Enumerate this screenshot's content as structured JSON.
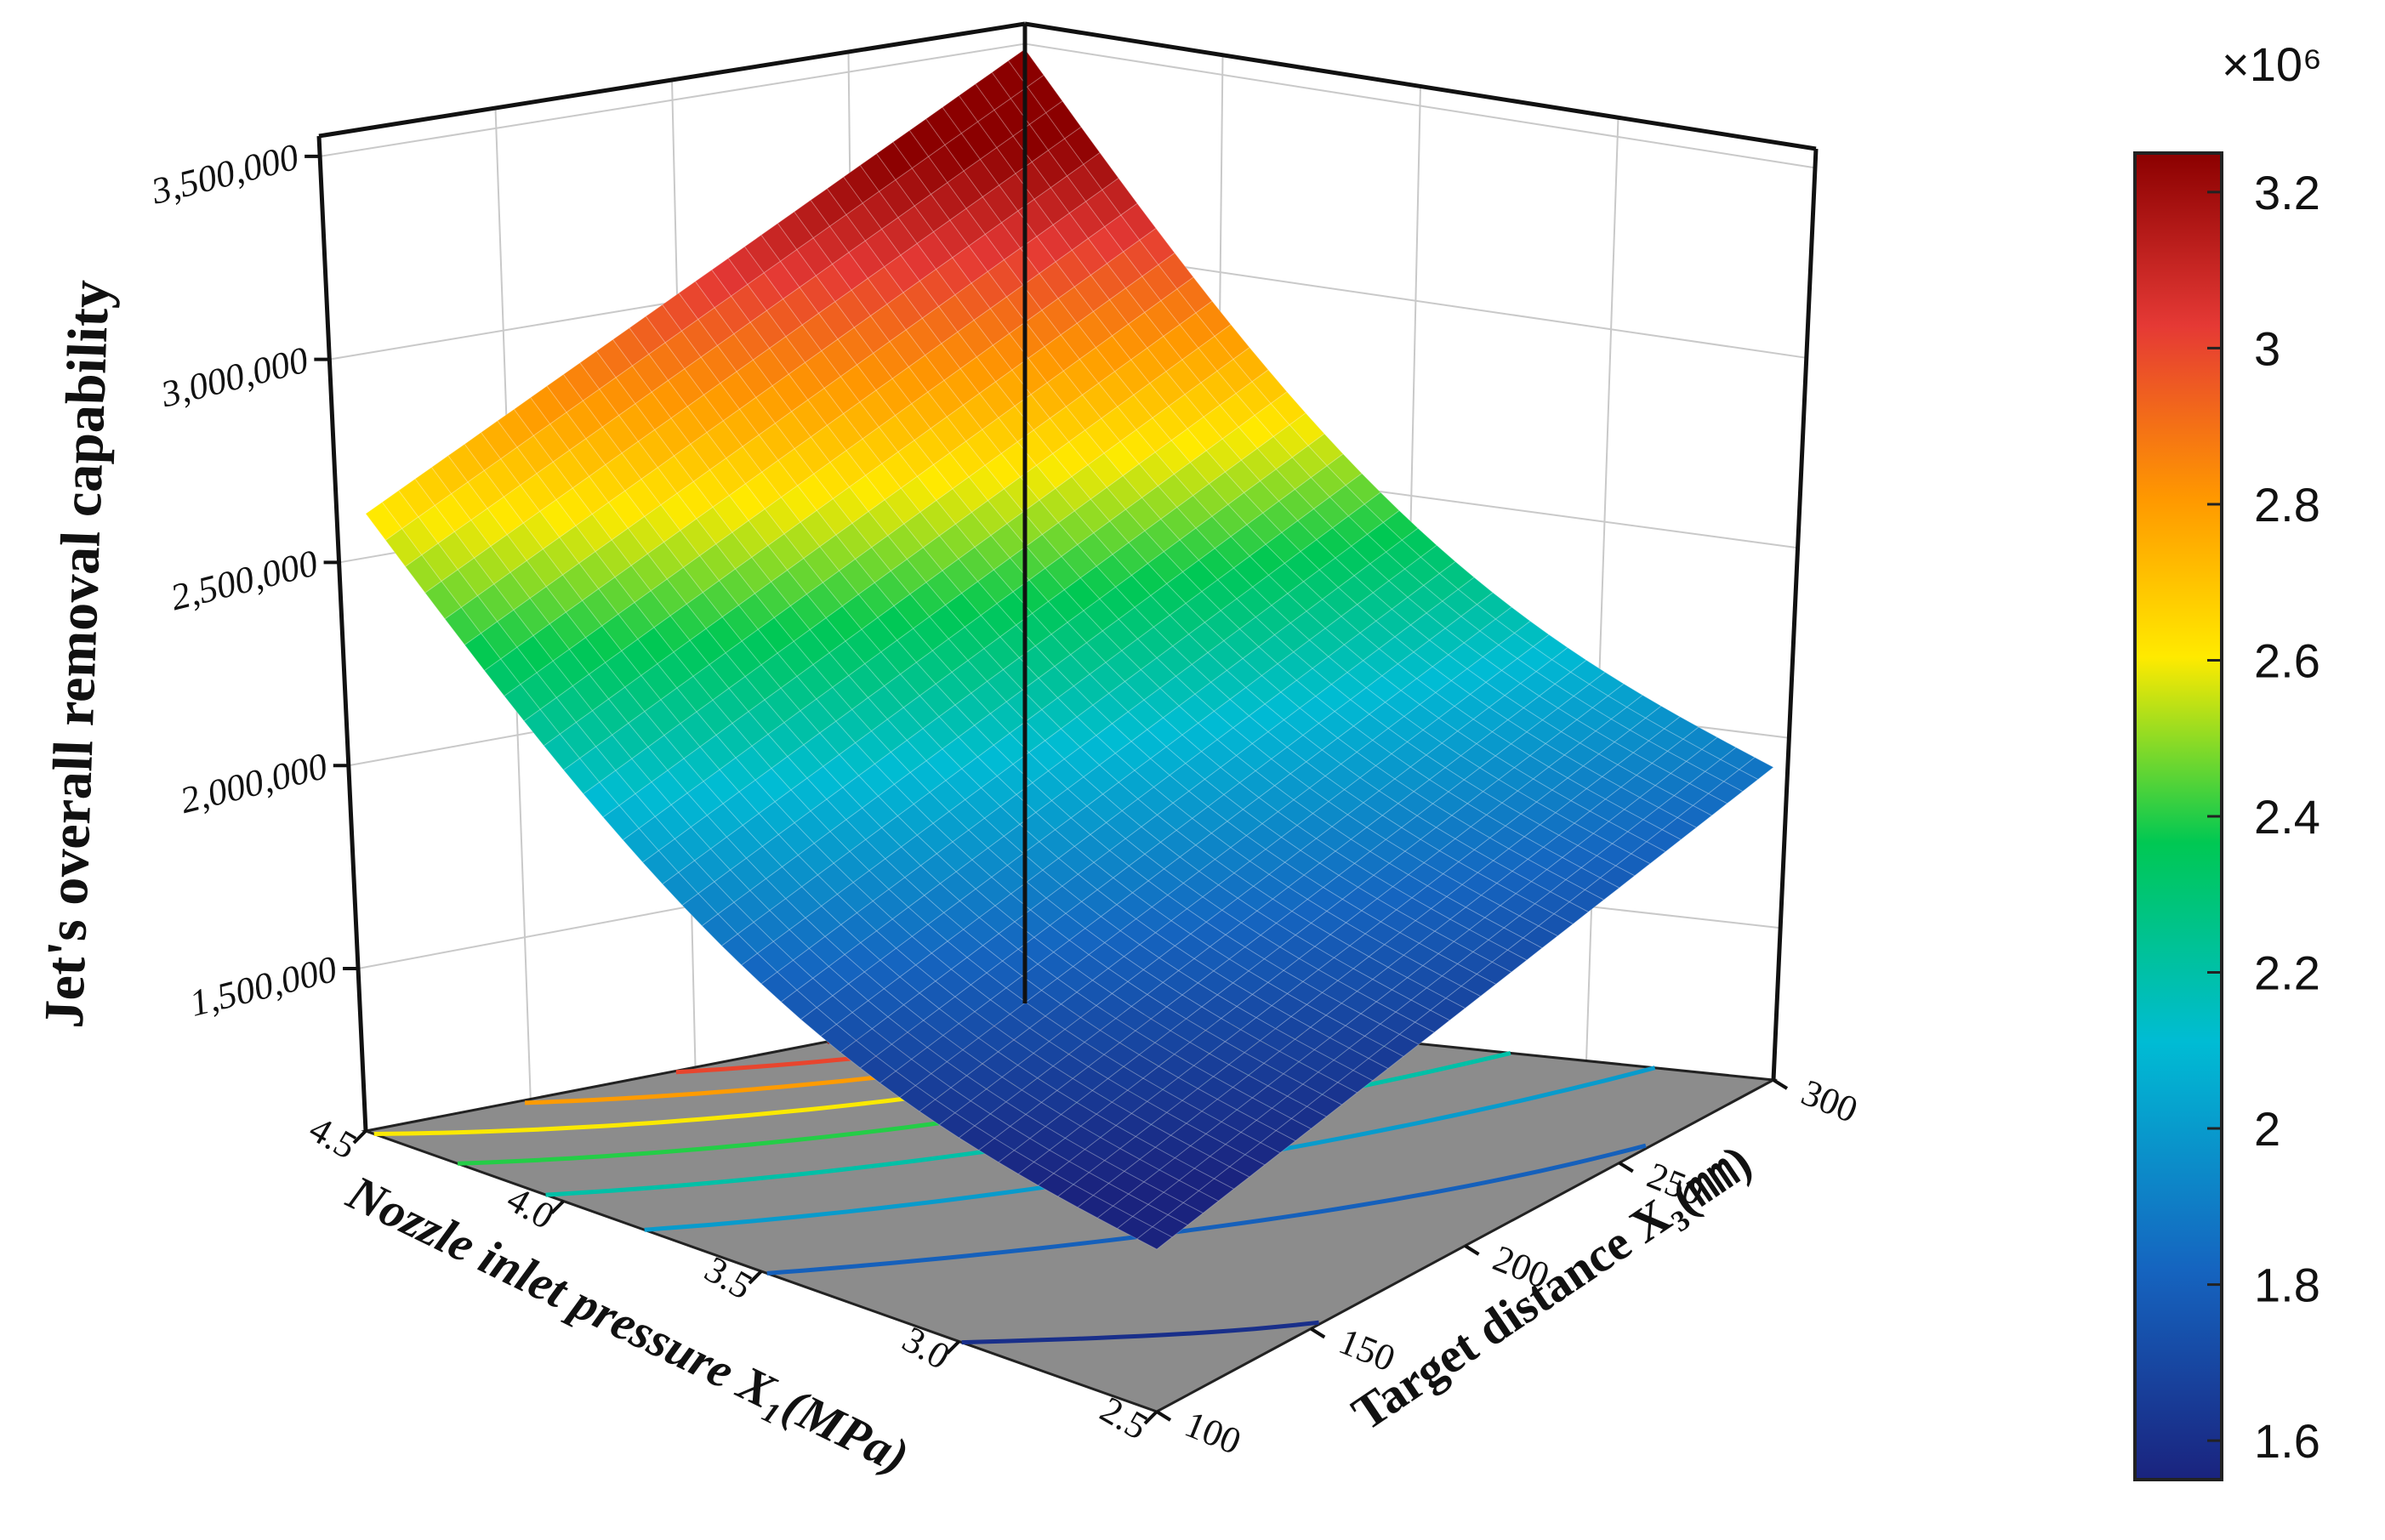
{
  "chart_data": {
    "type": "surface3d",
    "zlabel": "Jet's overall removal capability",
    "x1label": "Nozzle inlet pressure X₁(MPa)",
    "x3label": "Target distance X₃(㎜)",
    "x1_ticks": [
      "2.5",
      "3.0",
      "3.5",
      "4.0",
      "4.5"
    ],
    "x3_ticks": [
      "100",
      "150",
      "200",
      "250",
      "300"
    ],
    "z_ticks": [
      "1,500,000",
      "2,000,000",
      "2,500,000",
      "3,000,000",
      "3,500,000"
    ],
    "x1_range": [
      2.5,
      4.5
    ],
    "x3_range": [
      100,
      300
    ],
    "z_range": [
      1100000,
      3550000
    ],
    "corners": [
      {
        "x1": 4.5,
        "x3": 100,
        "z": 2620000
      },
      {
        "x1": 4.5,
        "x3": 300,
        "z": 3450000
      },
      {
        "x1": 2.5,
        "x3": 300,
        "z": 1870000
      },
      {
        "x1": 2.5,
        "x3": 100,
        "z": 1500000
      }
    ],
    "colorbar": {
      "exponent_label": "×10⁶",
      "ticks": [
        "1.6",
        "1.8",
        "2",
        "2.2",
        "2.4",
        "2.6",
        "2.8",
        "3",
        "3.2"
      ],
      "range": [
        1.55,
        3.25
      ],
      "colors": [
        "#1a237e",
        "#1565c0",
        "#00bcd4",
        "#00c853",
        "#ffea00",
        "#ff9800",
        "#e53935",
        "#8b0000"
      ]
    },
    "contour_base_color": "#8c8c8c",
    "contour_levels": [
      1.6,
      1.8,
      2.0,
      2.2,
      2.4,
      2.6,
      2.8,
      3.0,
      3.2
    ]
  }
}
